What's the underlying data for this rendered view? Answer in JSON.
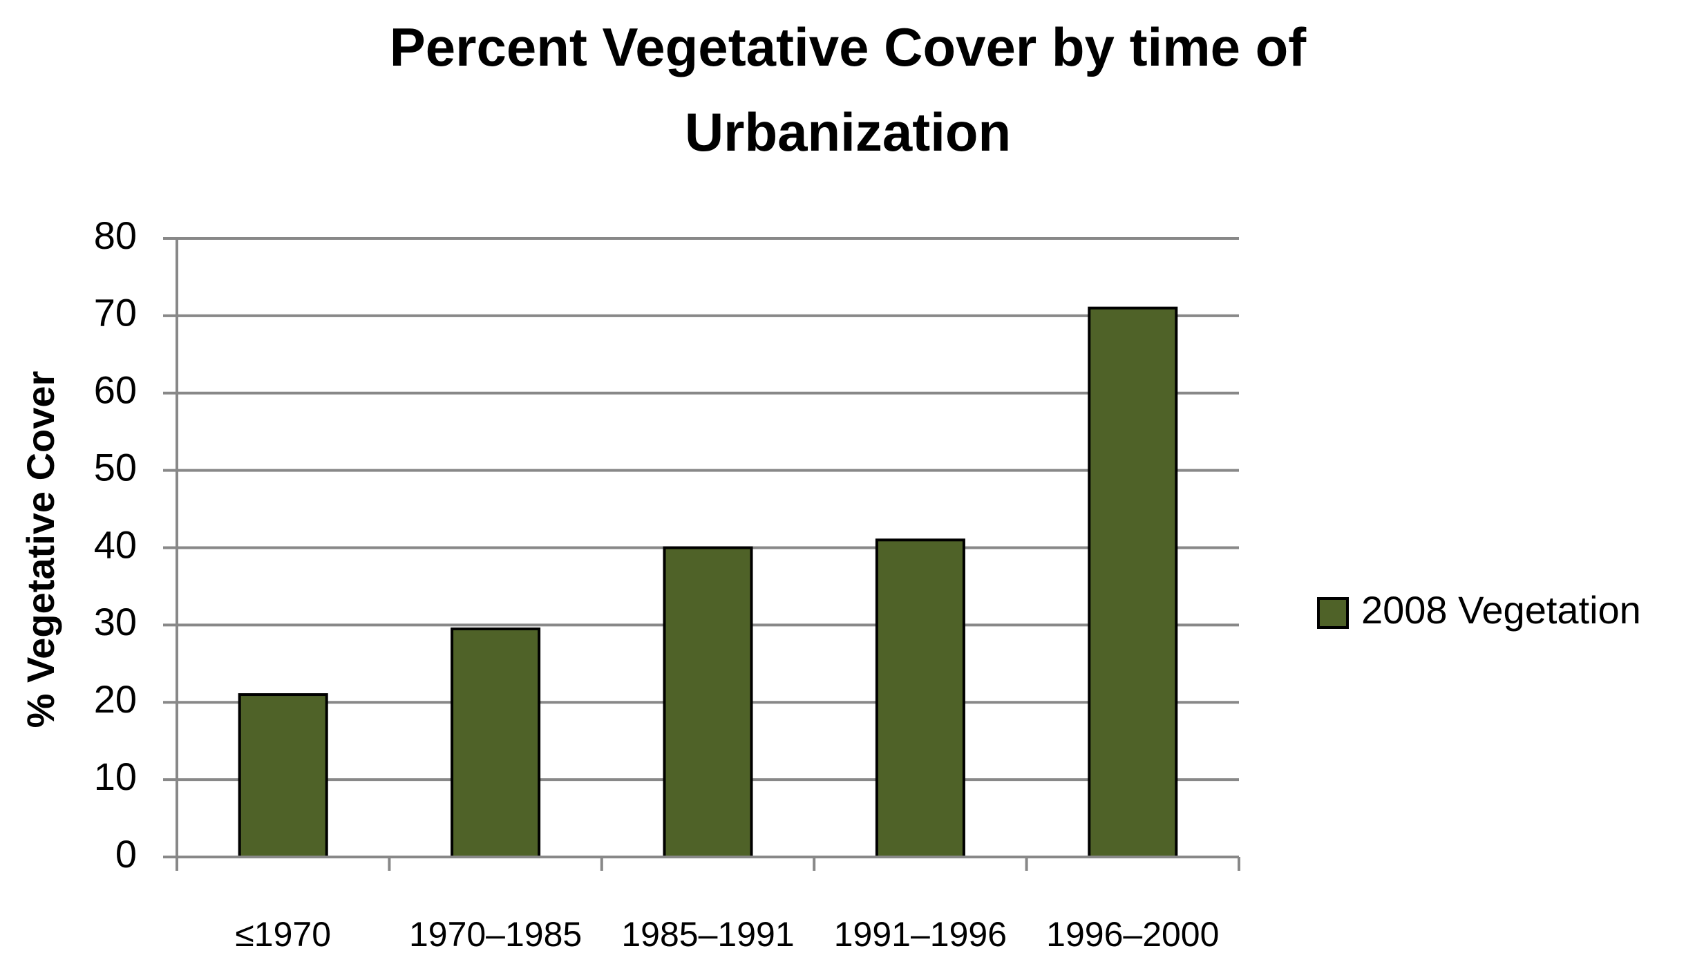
{
  "chart_data": {
    "type": "bar",
    "title": "Percent Vegetative Cover by time of Urbanization",
    "y_label": "% Vegetative Cover",
    "categories": [
      "≤1970",
      "1970–1985",
      "1985–1991",
      "1991–1996",
      "1996–2000"
    ],
    "series": [
      {
        "name": "2008 Vegetation",
        "color": "#4f6228",
        "values": [
          21,
          29.5,
          40,
          41,
          71
        ]
      }
    ],
    "ylim": [
      0,
      80
    ],
    "yticks": [
      0,
      10,
      20,
      30,
      40,
      50,
      60,
      70,
      80
    ],
    "grid": true,
    "legend": "right"
  }
}
